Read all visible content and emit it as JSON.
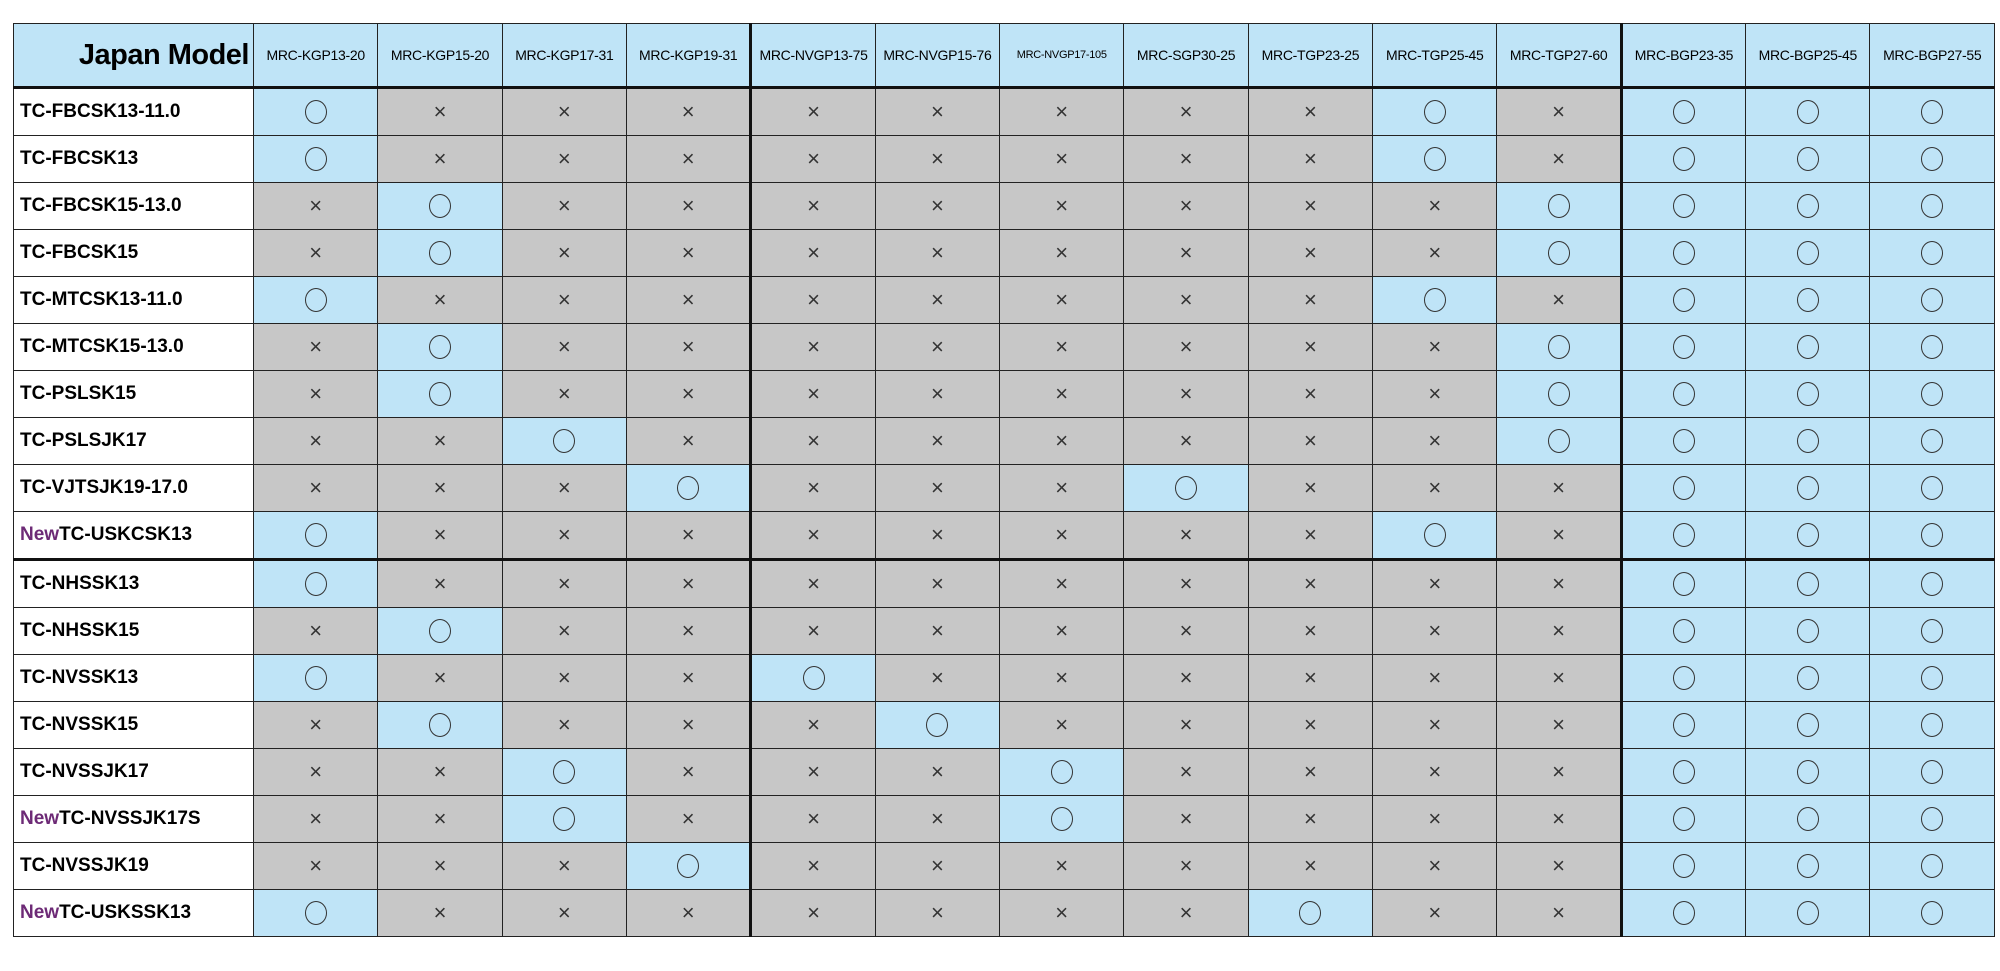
{
  "table": {
    "corner_label": "Japan Model",
    "columns": [
      "MRC-KGP13-20",
      "MRC-KGP15-20",
      "MRC-KGP17-31",
      "MRC-KGP19-31",
      "MRC-NVGP13-75",
      "MRC-NVGP15-76",
      "MRC-NVGP17-105",
      "MRC-SGP30-25",
      "MRC-TGP23-25",
      "MRC-TGP25-45",
      "MRC-TGP27-60",
      "MRC-BGP23-35",
      "MRC-BGP25-45",
      "MRC-BGP27-55"
    ],
    "symbols": {
      "compatible": "〇",
      "incompatible": "×"
    },
    "new_tag": "New",
    "rows": [
      {
        "model": "TC-FBCSK13-11.0",
        "new": false,
        "compatible": [
          "MRC-KGP13-20",
          "MRC-TGP25-45",
          "MRC-BGP23-35",
          "MRC-BGP25-45",
          "MRC-BGP27-55"
        ]
      },
      {
        "model": "TC-FBCSK13",
        "new": false,
        "compatible": [
          "MRC-KGP13-20",
          "MRC-TGP25-45",
          "MRC-BGP23-35",
          "MRC-BGP25-45",
          "MRC-BGP27-55"
        ]
      },
      {
        "model": "TC-FBCSK15-13.0",
        "new": false,
        "compatible": [
          "MRC-KGP15-20",
          "MRC-TGP27-60",
          "MRC-BGP23-35",
          "MRC-BGP25-45",
          "MRC-BGP27-55"
        ]
      },
      {
        "model": "TC-FBCSK15",
        "new": false,
        "compatible": [
          "MRC-KGP15-20",
          "MRC-TGP27-60",
          "MRC-BGP23-35",
          "MRC-BGP25-45",
          "MRC-BGP27-55"
        ]
      },
      {
        "model": "TC-MTCSK13-11.0",
        "new": false,
        "compatible": [
          "MRC-KGP13-20",
          "MRC-TGP25-45",
          "MRC-BGP23-35",
          "MRC-BGP25-45",
          "MRC-BGP27-55"
        ]
      },
      {
        "model": "TC-MTCSK15-13.0",
        "new": false,
        "compatible": [
          "MRC-KGP15-20",
          "MRC-TGP27-60",
          "MRC-BGP23-35",
          "MRC-BGP25-45",
          "MRC-BGP27-55"
        ]
      },
      {
        "model": "TC-PSLSK15",
        "new": false,
        "compatible": [
          "MRC-KGP15-20",
          "MRC-TGP27-60",
          "MRC-BGP23-35",
          "MRC-BGP25-45",
          "MRC-BGP27-55"
        ]
      },
      {
        "model": "TC-PSLSJK17",
        "new": false,
        "compatible": [
          "MRC-KGP17-31",
          "MRC-TGP27-60",
          "MRC-BGP23-35",
          "MRC-BGP25-45",
          "MRC-BGP27-55"
        ]
      },
      {
        "model": "TC-VJTSJK19-17.0",
        "new": false,
        "compatible": [
          "MRC-KGP19-31",
          "MRC-SGP30-25",
          "MRC-BGP23-35",
          "MRC-BGP25-45",
          "MRC-BGP27-55"
        ]
      },
      {
        "model": "TC-USKCSK13",
        "new": true,
        "compatible": [
          "MRC-KGP13-20",
          "MRC-TGP25-45",
          "MRC-BGP23-35",
          "MRC-BGP25-45",
          "MRC-BGP27-55"
        ]
      },
      {
        "model": "TC-NHSSK13",
        "new": false,
        "compatible": [
          "MRC-KGP13-20",
          "MRC-BGP23-35",
          "MRC-BGP25-45",
          "MRC-BGP27-55"
        ]
      },
      {
        "model": "TC-NHSSK15",
        "new": false,
        "compatible": [
          "MRC-KGP15-20",
          "MRC-BGP23-35",
          "MRC-BGP25-45",
          "MRC-BGP27-55"
        ]
      },
      {
        "model": "TC-NVSSK13",
        "new": false,
        "compatible": [
          "MRC-KGP13-20",
          "MRC-NVGP13-75",
          "MRC-BGP23-35",
          "MRC-BGP25-45",
          "MRC-BGP27-55"
        ]
      },
      {
        "model": "TC-NVSSK15",
        "new": false,
        "compatible": [
          "MRC-KGP15-20",
          "MRC-NVGP15-76",
          "MRC-BGP23-35",
          "MRC-BGP25-45",
          "MRC-BGP27-55"
        ]
      },
      {
        "model": "TC-NVSSJK17",
        "new": false,
        "compatible": [
          "MRC-KGP17-31",
          "MRC-NVGP17-105",
          "MRC-BGP23-35",
          "MRC-BGP25-45",
          "MRC-BGP27-55"
        ]
      },
      {
        "model": "TC-NVSSJK17S",
        "new": true,
        "compatible": [
          "MRC-KGP17-31",
          "MRC-NVGP17-105",
          "MRC-BGP23-35",
          "MRC-BGP25-45",
          "MRC-BGP27-55"
        ]
      },
      {
        "model": "TC-NVSSJK19",
        "new": false,
        "compatible": [
          "MRC-KGP19-31",
          "MRC-BGP23-35",
          "MRC-BGP25-45",
          "MRC-BGP27-55"
        ]
      },
      {
        "model": "TC-USKSSK13",
        "new": true,
        "compatible": [
          "MRC-KGP13-20",
          "MRC-TGP23-25",
          "MRC-BGP23-35",
          "MRC-BGP25-45",
          "MRC-BGP27-55"
        ]
      }
    ],
    "colors": {
      "compatible_bg": "#bfe4f7",
      "incompatible_bg": "#c7c7c7",
      "header_bg": "#bfe4f7",
      "new_tag": "#6d2a76"
    }
  }
}
